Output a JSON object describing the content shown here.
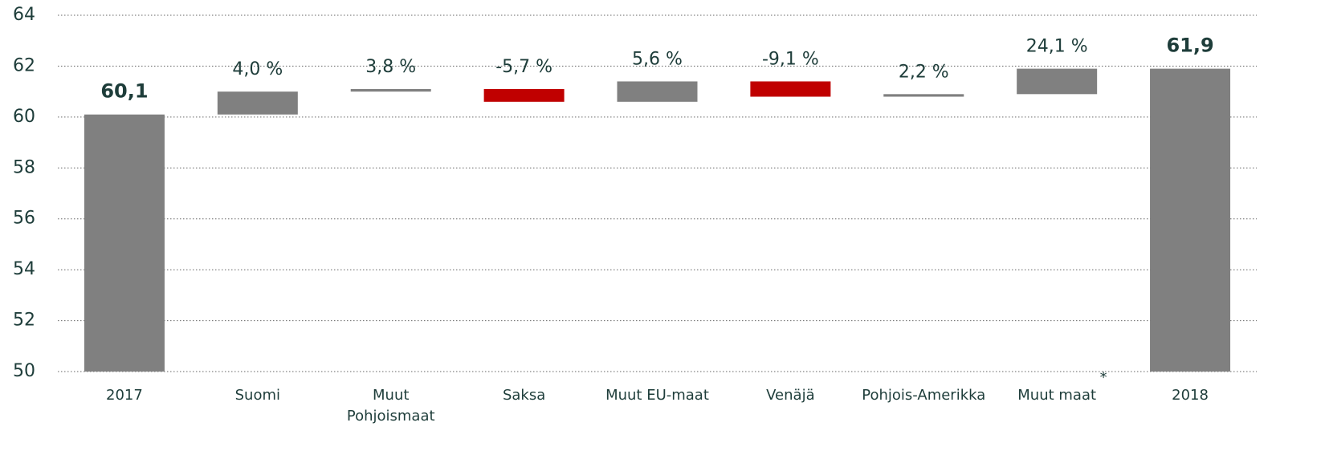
{
  "chart_data": {
    "type": "waterfall",
    "categories": [
      "2017",
      "Suomi",
      "Muut\nPohjoismaat",
      "Saksa",
      "Muut EU-maat",
      "Venäjä",
      "Pohjois-Amerikka",
      "Muut maat",
      "2018"
    ],
    "values": [
      60.1,
      0.9,
      0.1,
      -0.5,
      0.8,
      -0.6,
      0.1,
      1.0,
      61.9
    ],
    "is_total": [
      true,
      false,
      false,
      false,
      false,
      false,
      false,
      false,
      true
    ],
    "value_labels": [
      "60,1",
      null,
      null,
      null,
      null,
      null,
      null,
      null,
      "61,9"
    ],
    "change_labels": [
      null,
      "4,0 %",
      "3,8 %",
      "-5,7 %",
      "5,6 %",
      "-9,1 %",
      "2,2 %",
      "24,1 %",
      null
    ],
    "footnote_mark": "*",
    "color": "#808080",
    "negative_color": "#c00000",
    "ylim": [
      50,
      64
    ],
    "yticks": [
      50,
      52,
      54,
      56,
      58,
      60,
      62,
      64
    ],
    "grid": true
  }
}
